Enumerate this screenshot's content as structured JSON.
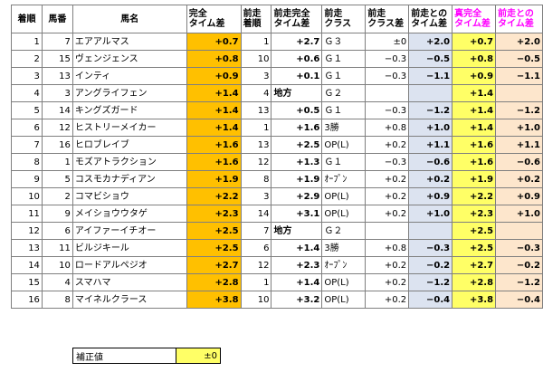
{
  "headers": [
    {
      "text": "着順",
      "pink": false
    },
    {
      "text": "馬番",
      "pink": false
    },
    {
      "text": "馬名",
      "pink": false
    },
    {
      "text": "完全\nタイム差",
      "pink": false
    },
    {
      "text": "前走\n着順",
      "pink": false
    },
    {
      "text": "前走完全\nタイム差",
      "pink": false
    },
    {
      "text": "前走\nクラス",
      "pink": false
    },
    {
      "text": "前走\nクラス差",
      "pink": false
    },
    {
      "text": "前走との\nタイム差",
      "pink": false
    },
    {
      "text": "真完全\nタイム差",
      "pink": true
    },
    {
      "text": "前走との\nタイム差",
      "pink": true
    }
  ],
  "rows": [
    {
      "rank": "1",
      "num": "7",
      "name": "エアアルマス",
      "kanzen": "+0.7",
      "prev_rank": "1",
      "prev_time": "+2.7",
      "prev_class": "Ｇ３",
      "class_diff": "±0",
      "time_diff": "+2.0",
      "shin": "+0.7",
      "diff2": "+2.0"
    },
    {
      "rank": "2",
      "num": "15",
      "name": "ヴェンジェンス",
      "kanzen": "+0.8",
      "prev_rank": "10",
      "prev_time": "+0.6",
      "prev_class": "Ｇ１",
      "class_diff": "−0.3",
      "time_diff": "−0.5",
      "shin": "+0.8",
      "diff2": "−0.5"
    },
    {
      "rank": "3",
      "num": "13",
      "name": "インティ",
      "kanzen": "+0.9",
      "prev_rank": "3",
      "prev_time": "+0.1",
      "prev_class": "Ｇ１",
      "class_diff": "−0.3",
      "time_diff": "−1.1",
      "shin": "+0.9",
      "diff2": "−1.1"
    },
    {
      "rank": "4",
      "num": "3",
      "name": "アングライフェン",
      "kanzen": "+1.4",
      "prev_rank": "4",
      "prev_time": "地方",
      "prev_class": "Ｇ２",
      "class_diff": "",
      "time_diff": "",
      "shin": "+1.4",
      "diff2": ""
    },
    {
      "rank": "5",
      "num": "14",
      "name": "キングズガード",
      "kanzen": "+1.4",
      "prev_rank": "13",
      "prev_time": "+0.5",
      "prev_class": "Ｇ１",
      "class_diff": "−0.3",
      "time_diff": "−1.2",
      "shin": "+1.4",
      "diff2": "−1.2"
    },
    {
      "rank": "6",
      "num": "12",
      "name": "ヒストリーメイカー",
      "kanzen": "+1.4",
      "prev_rank": "1",
      "prev_time": "+1.6",
      "prev_class": "3勝",
      "class_diff": "+0.8",
      "time_diff": "+1.0",
      "shin": "+1.4",
      "diff2": "+1.0"
    },
    {
      "rank": "7",
      "num": "16",
      "name": "ヒロブレイブ",
      "kanzen": "+1.6",
      "prev_rank": "13",
      "prev_time": "+2.5",
      "prev_class": "OP(L)",
      "class_diff": "+0.2",
      "time_diff": "+1.1",
      "shin": "+1.6",
      "diff2": "+1.1"
    },
    {
      "rank": "8",
      "num": "1",
      "name": "モズアトラクション",
      "kanzen": "+1.6",
      "prev_rank": "12",
      "prev_time": "+1.3",
      "prev_class": "Ｇ１",
      "class_diff": "−0.3",
      "time_diff": "−0.6",
      "shin": "+1.6",
      "diff2": "−0.6"
    },
    {
      "rank": "9",
      "num": "5",
      "name": "コスモカナディアン",
      "kanzen": "+1.9",
      "prev_rank": "8",
      "prev_time": "+1.9",
      "prev_class": "ｵｰﾌﾟﾝ",
      "class_diff": "+0.2",
      "time_diff": "+0.2",
      "shin": "+1.9",
      "diff2": "+0.2"
    },
    {
      "rank": "10",
      "num": "2",
      "name": "コマビショウ",
      "kanzen": "+2.2",
      "prev_rank": "3",
      "prev_time": "+2.9",
      "prev_class": "OP(L)",
      "class_diff": "+0.2",
      "time_diff": "+0.9",
      "shin": "+2.2",
      "diff2": "+0.9"
    },
    {
      "rank": "11",
      "num": "9",
      "name": "メイショウウタゲ",
      "kanzen": "+2.3",
      "prev_rank": "14",
      "prev_time": "+3.1",
      "prev_class": "OP(L)",
      "class_diff": "+0.2",
      "time_diff": "+1.0",
      "shin": "+2.3",
      "diff2": "+1.0"
    },
    {
      "rank": "12",
      "num": "6",
      "name": "アイファーイチオー",
      "kanzen": "+2.5",
      "prev_rank": "7",
      "prev_time": "地方",
      "prev_class": "Ｇ２",
      "class_diff": "",
      "time_diff": "",
      "shin": "+2.5",
      "diff2": ""
    },
    {
      "rank": "13",
      "num": "11",
      "name": "ビルジキール",
      "kanzen": "+2.5",
      "prev_rank": "6",
      "prev_time": "+1.4",
      "prev_class": "3勝",
      "class_diff": "+0.8",
      "time_diff": "−0.3",
      "shin": "+2.5",
      "diff2": "−0.3"
    },
    {
      "rank": "14",
      "num": "10",
      "name": "ロードアルペジオ",
      "kanzen": "+2.7",
      "prev_rank": "12",
      "prev_time": "+2.3",
      "prev_class": "ｵｰﾌﾟﾝ",
      "class_diff": "+0.2",
      "time_diff": "−0.2",
      "shin": "+2.7",
      "diff2": "−0.2"
    },
    {
      "rank": "15",
      "num": "4",
      "name": "スマハマ",
      "kanzen": "+2.8",
      "prev_rank": "1",
      "prev_time": "+1.4",
      "prev_class": "OP(L)",
      "class_diff": "+0.2",
      "time_diff": "−1.2",
      "shin": "+2.8",
      "diff2": "−1.2"
    },
    {
      "rank": "16",
      "num": "8",
      "name": "マイネルクラース",
      "kanzen": "+3.8",
      "prev_rank": "10",
      "prev_time": "+3.2",
      "prev_class": "OP(L)",
      "class_diff": "+0.2",
      "time_diff": "−0.4",
      "shin": "+3.8",
      "diff2": "−0.4"
    }
  ],
  "correction": {
    "label": "補正値",
    "value": "±0"
  },
  "colors": {
    "orange": "#ffc000",
    "yellow": "#ffff66",
    "lavender": "#dce3f0",
    "peach": "#fde6cc",
    "negative": "#ff0000",
    "header_pink": "#ff00ff"
  }
}
